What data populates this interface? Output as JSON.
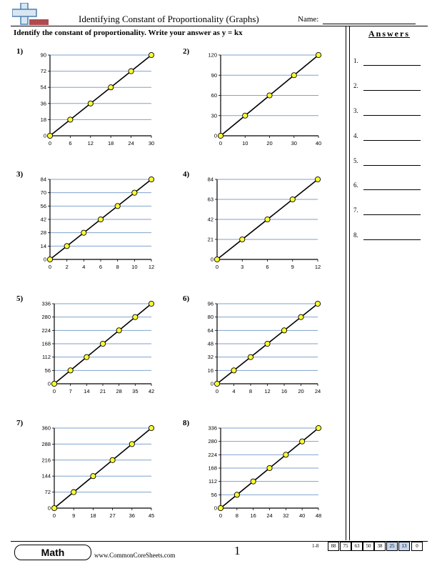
{
  "header": {
    "title": "Identifying Constant of Proportionality (Graphs)",
    "name_label": "Name:"
  },
  "instructions": "Identify the constant of proportionality. Write your answer as y = kx",
  "answers": {
    "title": "Answers",
    "items": [
      "1.",
      "2.",
      "3.",
      "4.",
      "5.",
      "6.",
      "7.",
      "8."
    ]
  },
  "problems": [
    {
      "number": "1)",
      "x_ticks": [
        "0",
        "6",
        "12",
        "18",
        "24",
        "30"
      ],
      "y_ticks": [
        "0",
        "18",
        "36",
        "54",
        "72",
        "90"
      ]
    },
    {
      "number": "2)",
      "x_ticks": [
        "0",
        "10",
        "20",
        "30",
        "40"
      ],
      "y_ticks": [
        "0",
        "30",
        "60",
        "90",
        "120"
      ]
    },
    {
      "number": "3)",
      "x_ticks": [
        "0",
        "2",
        "4",
        "6",
        "8",
        "10",
        "12"
      ],
      "y_ticks": [
        "0",
        "14",
        "28",
        "42",
        "56",
        "70",
        "84"
      ]
    },
    {
      "number": "4)",
      "x_ticks": [
        "0",
        "3",
        "6",
        "9",
        "12"
      ],
      "y_ticks": [
        "0",
        "21",
        "42",
        "63",
        "84"
      ]
    },
    {
      "number": "5)",
      "x_ticks": [
        "0",
        "7",
        "14",
        "21",
        "28",
        "35",
        "42"
      ],
      "y_ticks": [
        "0",
        "56",
        "112",
        "168",
        "224",
        "280",
        "336"
      ]
    },
    {
      "number": "6)",
      "x_ticks": [
        "0",
        "4",
        "8",
        "12",
        "16",
        "20",
        "24"
      ],
      "y_ticks": [
        "0",
        "16",
        "32",
        "48",
        "64",
        "80",
        "96"
      ]
    },
    {
      "number": "7)",
      "x_ticks": [
        "0",
        "9",
        "18",
        "27",
        "36",
        "45"
      ],
      "y_ticks": [
        "0",
        "72",
        "144",
        "216",
        "288",
        "360"
      ]
    },
    {
      "number": "8)",
      "x_ticks": [
        "0",
        "8",
        "16",
        "24",
        "32",
        "40",
        "48"
      ],
      "y_ticks": [
        "0",
        "56",
        "112",
        "168",
        "224",
        "280",
        "336"
      ]
    }
  ],
  "chart_data": [
    {
      "type": "line",
      "x": [
        0,
        6,
        12,
        18,
        24,
        30
      ],
      "y": [
        0,
        18,
        36,
        54,
        72,
        90
      ],
      "xlim": [
        0,
        30
      ],
      "ylim": [
        0,
        90
      ]
    },
    {
      "type": "line",
      "x": [
        0,
        10,
        20,
        30,
        40
      ],
      "y": [
        0,
        30,
        60,
        90,
        120
      ],
      "xlim": [
        0,
        40
      ],
      "ylim": [
        0,
        120
      ]
    },
    {
      "type": "line",
      "x": [
        0,
        2,
        4,
        6,
        8,
        10,
        12
      ],
      "y": [
        0,
        14,
        28,
        42,
        56,
        70,
        84
      ],
      "xlim": [
        0,
        12
      ],
      "ylim": [
        0,
        84
      ]
    },
    {
      "type": "line",
      "x": [
        0,
        3,
        6,
        9,
        12
      ],
      "y": [
        0,
        21,
        42,
        63,
        84
      ],
      "xlim": [
        0,
        12
      ],
      "ylim": [
        0,
        84
      ]
    },
    {
      "type": "line",
      "x": [
        0,
        7,
        14,
        21,
        28,
        35,
        42
      ],
      "y": [
        0,
        56,
        112,
        168,
        224,
        280,
        336
      ],
      "xlim": [
        0,
        42
      ],
      "ylim": [
        0,
        336
      ]
    },
    {
      "type": "line",
      "x": [
        0,
        4,
        8,
        12,
        16,
        20,
        24
      ],
      "y": [
        0,
        16,
        32,
        48,
        64,
        80,
        96
      ],
      "xlim": [
        0,
        24
      ],
      "ylim": [
        0,
        96
      ]
    },
    {
      "type": "line",
      "x": [
        0,
        9,
        18,
        27,
        36,
        45
      ],
      "y": [
        0,
        72,
        144,
        216,
        288,
        360
      ],
      "xlim": [
        0,
        45
      ],
      "ylim": [
        0,
        360
      ]
    },
    {
      "type": "line",
      "x": [
        0,
        8,
        16,
        24,
        32,
        40,
        48
      ],
      "y": [
        0,
        56,
        112,
        168,
        224,
        280,
        336
      ],
      "xlim": [
        0,
        48
      ],
      "ylim": [
        0,
        336
      ]
    }
  ],
  "footer": {
    "subject": "Math",
    "website": "www.CommonCoreSheets.com",
    "page_number": "1",
    "score_label": "1-8",
    "scores": [
      "88",
      "75",
      "63",
      "50",
      "38",
      "25",
      "13",
      "0"
    ]
  },
  "colors": {
    "gridline": "#7fa2cc",
    "point_fill": "#ffff33",
    "score_highlight": "#c7d6ee"
  }
}
